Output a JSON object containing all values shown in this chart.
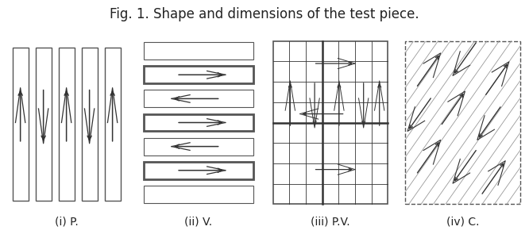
{
  "title": "Fig. 1. Shape and dimensions of the test piece.",
  "title_fontsize": 12,
  "labels": [
    "(i) P.",
    "(ii) V.",
    "(iii) P.V.",
    "(iv) C."
  ],
  "bg_color": "#ffffff",
  "border_color": "#555555",
  "line_color": "#333333"
}
